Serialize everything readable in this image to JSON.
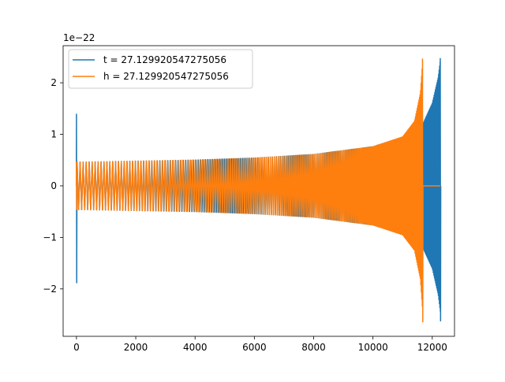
{
  "chart_data": {
    "type": "line",
    "title": "",
    "xlabel": "",
    "ylabel": "",
    "y_offset_label": "1e−22",
    "xlim": [
      -450,
      12750
    ],
    "ylim": [
      -2.92,
      2.72
    ],
    "xticks": [
      0,
      2000,
      4000,
      6000,
      8000,
      10000,
      12000
    ],
    "xtick_labels": [
      "0",
      "2000",
      "4000",
      "6000",
      "8000",
      "10000",
      "12000"
    ],
    "yticks": [
      -2,
      -1,
      0,
      1,
      2
    ],
    "ytick_labels": [
      "−2",
      "−1",
      "0",
      "1",
      "2"
    ],
    "grid": false,
    "legend_position": "upper-left",
    "series": [
      {
        "name": "t = 27.129920547275056",
        "color": "#1f77b4",
        "x_start": 0,
        "merger_x": 12280,
        "x_end": 12280,
        "spike_at_start": {
          "max": 1.39,
          "min": -1.88
        },
        "envelope": {
          "x": [
            0,
            2000,
            4000,
            6000,
            8000,
            10000,
            11000,
            11600,
            12000,
            12200,
            12280
          ],
          "amplitude": [
            0.46,
            0.48,
            0.5,
            0.54,
            0.61,
            0.76,
            0.93,
            1.1,
            1.6,
            2.1,
            2.47
          ]
        },
        "merger_min": -2.62
      },
      {
        "name": "h = 27.129920547275056",
        "color": "#ff7f0e",
        "x_start": 0,
        "merger_x": 11680,
        "x_end": 12280,
        "spike_at_start": {
          "max": 0.46,
          "min": -0.46
        },
        "envelope": {
          "x": [
            0,
            2000,
            4000,
            6000,
            8000,
            10000,
            11000,
            11400,
            11600,
            11680
          ],
          "amplitude": [
            0.46,
            0.48,
            0.5,
            0.54,
            0.61,
            0.76,
            0.95,
            1.25,
            1.8,
            2.46
          ]
        },
        "merger_min": -2.64
      }
    ]
  }
}
